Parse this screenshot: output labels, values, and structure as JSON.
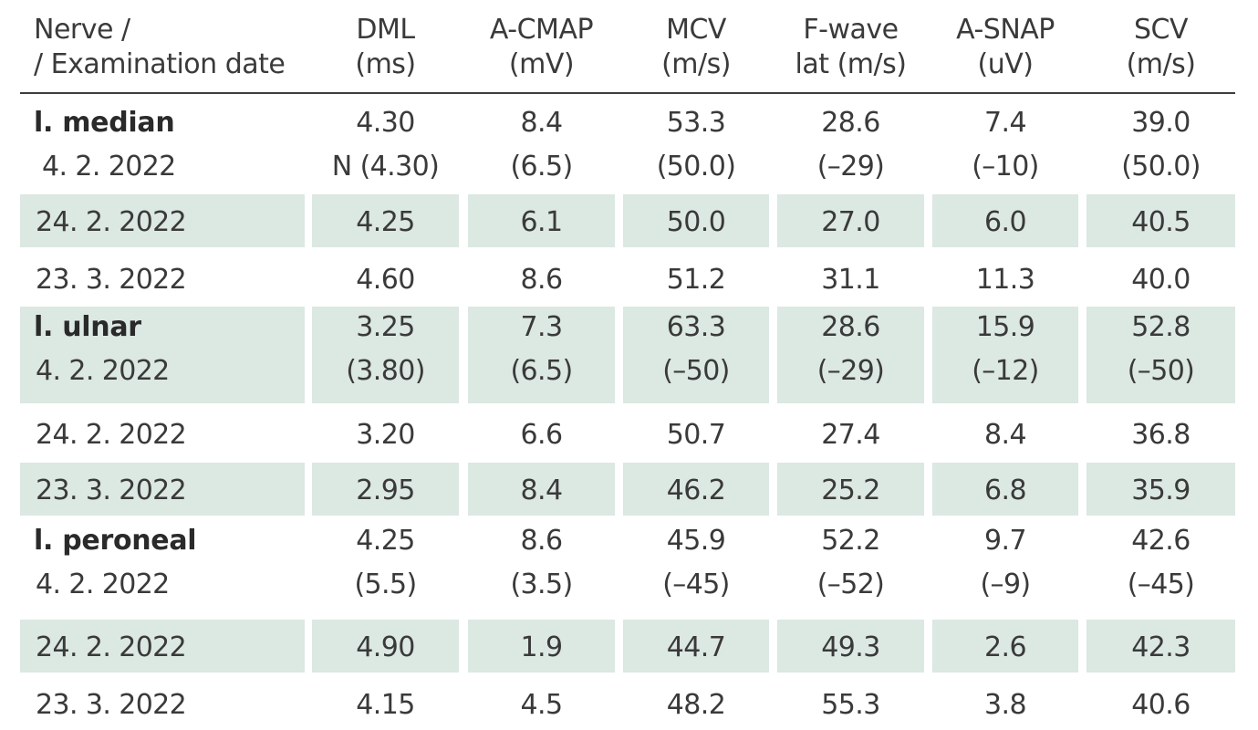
{
  "headers": [
    {
      "line1": "Nerve /",
      "line2": "/ Examination date"
    },
    {
      "line1": "DML",
      "line2": "(ms)"
    },
    {
      "line1": "A-CMAP",
      "line2": "(mV)"
    },
    {
      "line1": "MCV",
      "line2": "(m/s)"
    },
    {
      "line1": "F-wave",
      "line2": "lat (m/s)"
    },
    {
      "line1": "A-SNAP",
      "line2": "(uV)"
    },
    {
      "line1": "SCV",
      "line2": "(m/s)"
    }
  ],
  "groups": [
    {
      "nerve": "l. median",
      "first": {
        "date": "4. 2. 2022",
        "values": [
          "4.30",
          "8.4",
          "53.3",
          "28.6",
          "7.4",
          "39.0"
        ],
        "refs": [
          "N (4.30)",
          "(6.5)",
          "(50.0)",
          "(–29)",
          "(–10)",
          "(50.0)"
        ]
      },
      "rows": [
        {
          "date": "24. 2. 2022",
          "values": [
            "4.25",
            "6.1",
            "50.0",
            "27.0",
            "6.0",
            "40.5"
          ]
        },
        {
          "date": "23. 3. 2022",
          "values": [
            "4.60",
            "8.6",
            "51.2",
            "31.1",
            "11.3",
            "40.0"
          ]
        }
      ]
    },
    {
      "nerve": "l. ulnar",
      "first": {
        "date": "4. 2. 2022",
        "values": [
          "3.25",
          "7.3",
          "63.3",
          "28.6",
          "15.9",
          "52.8"
        ],
        "refs": [
          "(3.80)",
          "(6.5)",
          "(–50)",
          "(–29)",
          "(–12)",
          "(–50)"
        ]
      },
      "rows": [
        {
          "date": "24. 2. 2022",
          "values": [
            "3.20",
            "6.6",
            "50.7",
            "27.4",
            "8.4",
            "36.8"
          ]
        },
        {
          "date": "23. 3. 2022",
          "values": [
            "2.95",
            "8.4",
            "46.2",
            "25.2",
            "6.8",
            "35.9"
          ]
        }
      ]
    },
    {
      "nerve": "l. peroneal",
      "first": {
        "date": "4. 2. 2022",
        "values": [
          "4.25",
          "8.6",
          "45.9",
          "52.2",
          "9.7",
          "42.6"
        ],
        "refs": [
          "(5.5)",
          "(3.5)",
          "(–45)",
          "(–52)",
          "(–9)",
          "(–45)"
        ]
      },
      "rows": [
        {
          "date": "24. 2. 2022",
          "values": [
            "4.90",
            "1.9",
            "44.7",
            "49.3",
            "2.6",
            "42.3"
          ]
        },
        {
          "date": "23. 3. 2022",
          "values": [
            "4.15",
            "4.5",
            "48.2",
            "55.3",
            "3.8",
            "40.6"
          ]
        }
      ]
    }
  ]
}
